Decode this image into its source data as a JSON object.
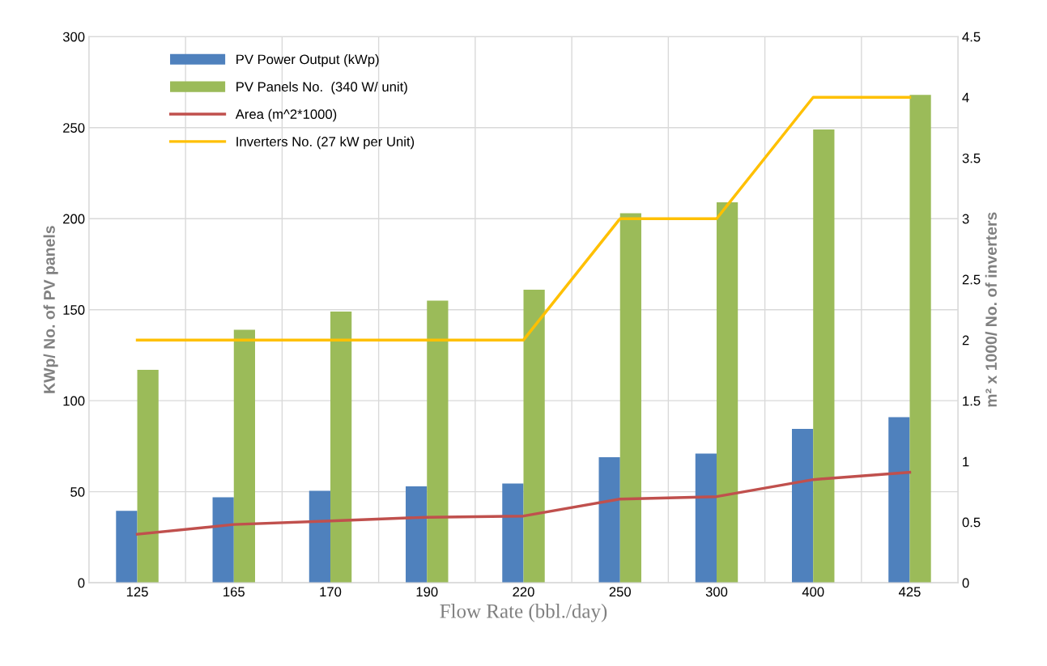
{
  "chart_data": {
    "type": "bar",
    "xlabel": "Flow Rate (bbl./day)",
    "ylabel": "KWp/ No. of PV panels",
    "y2label": "m² x 1000/ No. of inverters",
    "categories": [
      "125",
      "165",
      "170",
      "190",
      "220",
      "250",
      "300",
      "400",
      "425"
    ],
    "series": [
      {
        "name": "PV Power Output (kWp)",
        "color": "#4f81bd",
        "values": [
          39.5,
          47,
          50.5,
          53,
          54.5,
          69,
          71,
          84.5,
          91
        ]
      },
      {
        "name": "PV Panels No.  (340 W/ unit)",
        "color": "#9bbb59",
        "values": [
          117,
          139,
          149,
          155,
          161,
          203,
          209,
          249,
          268
        ]
      },
      {
        "name": "Area (m^2*1000)",
        "type": "line",
        "axis": "y2",
        "color": "#c0504d",
        "values": [
          0.4,
          0.48,
          0.51,
          0.54,
          0.55,
          0.69,
          0.71,
          0.85,
          0.91
        ]
      },
      {
        "name": "Inverters No. (27 kW per Unit)",
        "type": "line",
        "axis": "y2",
        "color": "#ffc000",
        "values": [
          2,
          2,
          2,
          2,
          2,
          3,
          3,
          4,
          4
        ]
      }
    ],
    "ylim": [
      0,
      300
    ],
    "yticks": [
      0,
      50,
      100,
      150,
      200,
      250,
      300
    ],
    "y2lim": [
      0,
      4.5
    ],
    "y2ticks": [
      0,
      0.5,
      1,
      1.5,
      2,
      2.5,
      3,
      3.5,
      4,
      4.5
    ],
    "grid": true,
    "legend": "top left"
  }
}
